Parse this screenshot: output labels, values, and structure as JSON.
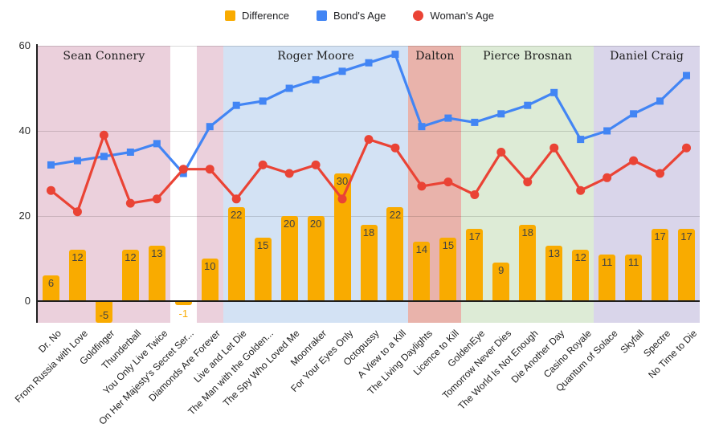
{
  "chart_data": {
    "type": "combo",
    "categories": [
      "Dr. No",
      "From Russia with Love",
      "Goldfinger",
      "Thunderball",
      "You Only Live Twice",
      "On Her Majesty's Secret Ser...",
      "Diamonds Are Forever",
      "Live and Let Die",
      "The Man with the Golden...",
      "The Spy Who Loved Me",
      "Moonraker",
      "For Your Eyes Only",
      "Octopussy",
      "A View to a Kill",
      "The Living Daylights",
      "Licence to Kill",
      "GoldenEye",
      "Tomorrow Never Dies",
      "The World Is Not Enough",
      "Die Another Day",
      "Casino Royale",
      "Quantum of Solace",
      "Skyfall",
      "Spectre",
      "No Time to Die"
    ],
    "series": [
      {
        "name": "Difference",
        "type": "bar",
        "color": "#F9AB00",
        "marker": "square",
        "values": [
          6,
          12,
          -5,
          12,
          13,
          -1,
          10,
          22,
          15,
          20,
          20,
          30,
          18,
          22,
          14,
          15,
          17,
          9,
          18,
          13,
          12,
          11,
          11,
          17,
          17
        ]
      },
      {
        "name": "Bond's Age",
        "type": "line",
        "color": "#4285F4",
        "marker": "square",
        "values": [
          32,
          33,
          34,
          35,
          37,
          30,
          41,
          46,
          47,
          50,
          52,
          54,
          56,
          58,
          41,
          43,
          42,
          44,
          46,
          49,
          38,
          40,
          44,
          47,
          53
        ]
      },
      {
        "name": "Woman's Age",
        "type": "line",
        "color": "#EA4335",
        "marker": "circle",
        "values": [
          26,
          21,
          39,
          23,
          24,
          31,
          31,
          24,
          32,
          30,
          32,
          24,
          38,
          36,
          27,
          28,
          25,
          35,
          28,
          36,
          26,
          29,
          33,
          30,
          36
        ]
      }
    ],
    "era_regions": [
      {
        "label": "Sean Connery",
        "from": 0,
        "to": 4,
        "color": "#EBD0DC"
      },
      {
        "label": "",
        "from": 6,
        "to": 6,
        "color": "#EBD0DC"
      },
      {
        "label": "Roger Moore",
        "from": 7,
        "to": 13,
        "color": "#D3E2F4"
      },
      {
        "label": "Dalton",
        "from": 14,
        "to": 15,
        "color": "#E9B3AB"
      },
      {
        "label": "Pierce Brosnan",
        "from": 16,
        "to": 20,
        "color": "#DDEBD6"
      },
      {
        "label": "Daniel Craig",
        "from": 21,
        "to": 24,
        "color": "#D9D5EA"
      }
    ],
    "yticks": [
      0,
      20,
      40,
      60
    ],
    "ylim": [
      -5,
      60
    ],
    "grid": true,
    "legend_position": "top"
  }
}
